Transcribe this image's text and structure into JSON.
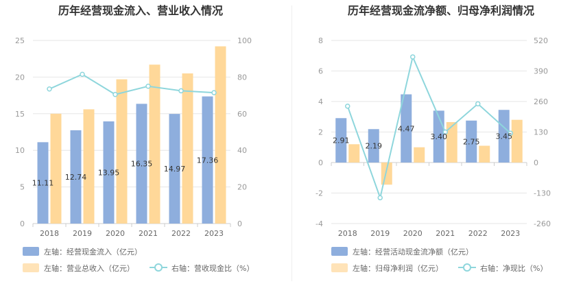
{
  "chart_data": [
    {
      "type": "bar",
      "title": "历年经营现金流入、营业收入情况",
      "categories": [
        "2018",
        "2019",
        "2020",
        "2021",
        "2022",
        "2023"
      ],
      "left_axis": {
        "ylim": [
          0,
          25
        ],
        "ticks": [
          "0",
          "5",
          "10",
          "15",
          "20",
          "25"
        ]
      },
      "right_axis": {
        "ylim": [
          0,
          100
        ],
        "ticks": [
          "0",
          "20",
          "40",
          "60",
          "80",
          "100"
        ]
      },
      "series": [
        {
          "name": "左轴：经营现金流入（亿元）",
          "kind": "bar",
          "axis": "left",
          "color": "#8eaedd",
          "values": [
            11.11,
            12.74,
            13.95,
            16.35,
            14.97,
            17.36
          ],
          "labels": [
            "11.11",
            "12.74",
            "13.95",
            "16.35",
            "14.97",
            "17.36"
          ]
        },
        {
          "name": "左轴：营业总收入（亿元）",
          "kind": "bar",
          "axis": "left",
          "color": "#ffd899",
          "values": [
            15.0,
            15.6,
            19.7,
            21.7,
            20.5,
            24.2
          ]
        },
        {
          "name": "右轴：营收现金比（%）",
          "kind": "line",
          "axis": "right",
          "color": "#8ed6dc",
          "values": [
            73.5,
            81.5,
            70.5,
            75.0,
            72.5,
            71.5
          ]
        }
      ],
      "grid": true,
      "legend_position": "bottom-left"
    },
    {
      "type": "bar",
      "title": "历年经营现金流净额、归母净利润情况",
      "categories": [
        "2018",
        "2019",
        "2020",
        "2021",
        "2022",
        "2023"
      ],
      "left_axis": {
        "ylim": [
          -4,
          8
        ],
        "ticks": [
          "-4",
          "-2",
          "0",
          "2",
          "4",
          "6",
          "8"
        ]
      },
      "right_axis": {
        "ylim": [
          -260,
          520
        ],
        "ticks": [
          "-260",
          "-130",
          "0",
          "130",
          "260",
          "390",
          "520"
        ]
      },
      "series": [
        {
          "name": "左轴：经营活动现金流净额（亿元）",
          "kind": "bar",
          "axis": "left",
          "color": "#8eaedd",
          "values": [
            2.91,
            2.19,
            4.47,
            3.4,
            2.75,
            3.45
          ],
          "labels": [
            "2.91",
            "2.19",
            "4.47",
            "3.40",
            "2.75",
            "3.45"
          ]
        },
        {
          "name": "左轴：归母净利润（亿元）",
          "kind": "bar",
          "axis": "left",
          "color": "#ffd899",
          "values": [
            1.2,
            -1.45,
            1.0,
            2.65,
            1.1,
            2.8
          ]
        },
        {
          "name": "右轴：净现比（%）",
          "kind": "line",
          "axis": "right",
          "color": "#8ed6dc",
          "values": [
            240,
            -150,
            450,
            130,
            250,
            125
          ]
        }
      ],
      "grid": true,
      "legend_position": "bottom-left"
    }
  ]
}
